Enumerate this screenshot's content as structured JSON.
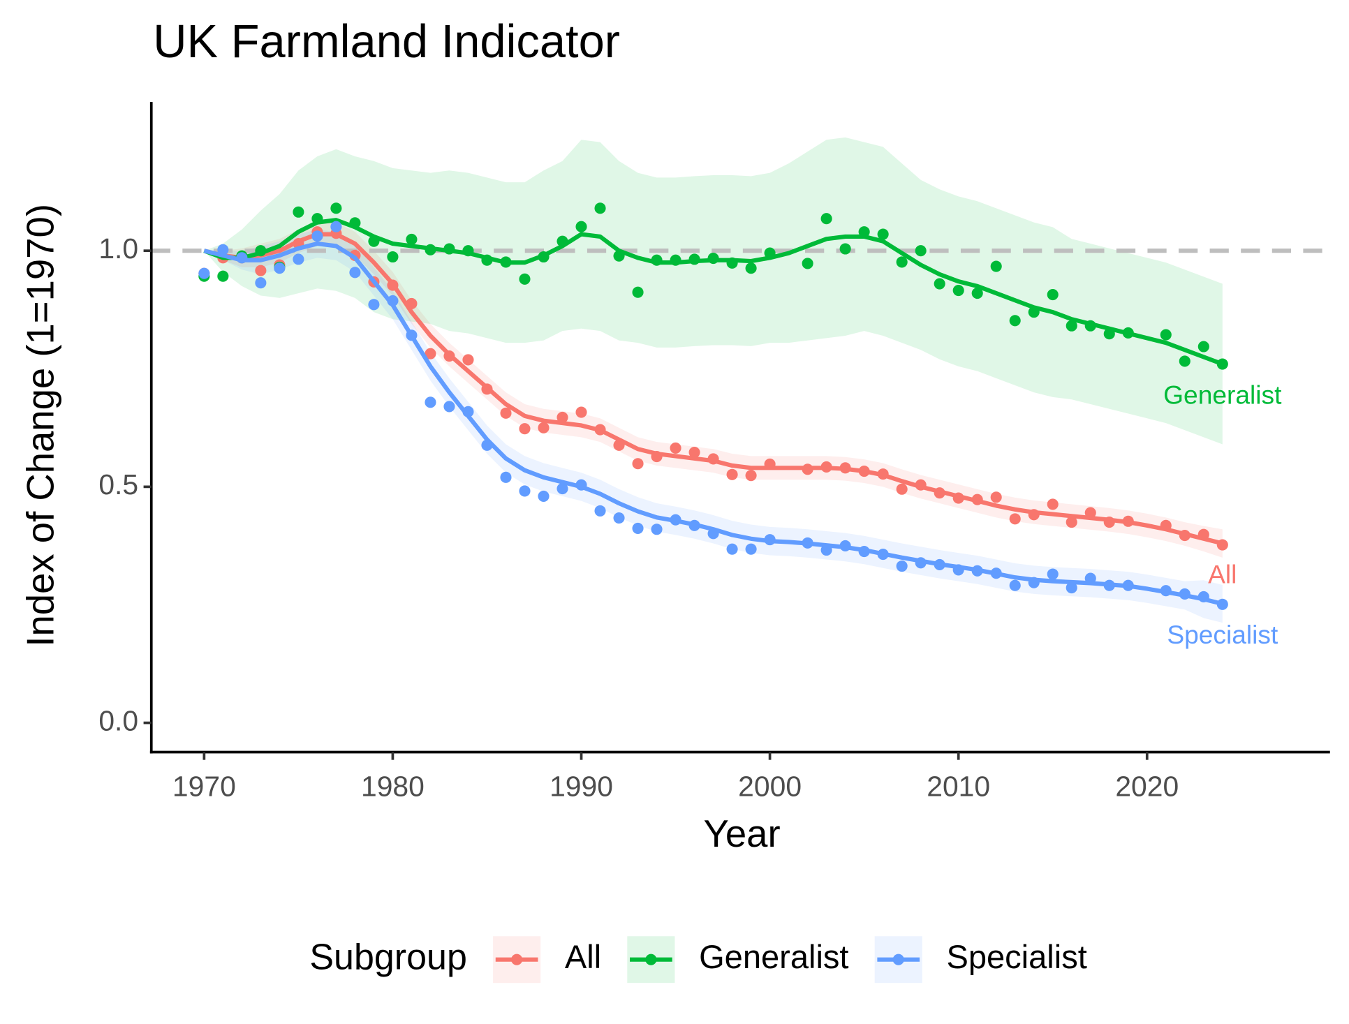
{
  "chart_data": {
    "type": "line",
    "title": "UK Farmland Indicator",
    "x_label": "Year",
    "y_label": "Index of Change (1=1970)",
    "legend_title": "Subgroup",
    "legend_position": "bottom",
    "hline": 1,
    "xlim": [
      1967.2,
      2029.7
    ],
    "ylim": [
      -0.062,
      1.315
    ],
    "xticks": [
      1970,
      1980,
      1990,
      2000,
      2010,
      2020
    ],
    "yticks": [
      {
        "value": 0,
        "label": "0.0"
      },
      {
        "value": 0.5,
        "label": "0.5"
      },
      {
        "value": 1,
        "label": "1.0"
      }
    ],
    "x": [
      1970,
      1971,
      1972,
      1973,
      1974,
      1975,
      1976,
      1977,
      1978,
      1979,
      1980,
      1981,
      1982,
      1983,
      1984,
      1985,
      1986,
      1987,
      1988,
      1989,
      1990,
      1991,
      1992,
      1993,
      1994,
      1995,
      1996,
      1997,
      1998,
      1999,
      2000,
      2001,
      2002,
      2003,
      2004,
      2005,
      2006,
      2007,
      2008,
      2009,
      2010,
      2011,
      2012,
      2013,
      2014,
      2015,
      2016,
      2017,
      2018,
      2019,
      2020,
      2021,
      2022,
      2023,
      2024
    ],
    "series": [
      {
        "name": "All",
        "color": "#F8766D",
        "values": [
          0.952,
          0.985,
          0.985,
          0.958,
          0.97,
          1.015,
          1.04,
          1.037,
          0.99,
          0.934,
          0.927,
          0.888,
          0.782,
          0.777,
          0.769,
          0.707,
          0.656,
          0.623,
          0.625,
          0.647,
          0.658,
          0.621,
          0.588,
          0.549,
          0.564,
          0.582,
          0.573,
          0.559,
          0.526,
          0.524,
          0.548,
          null,
          0.537,
          0.542,
          0.54,
          0.533,
          0.527,
          0.495,
          0.504,
          0.487,
          0.476,
          0.473,
          0.478,
          0.432,
          0.441,
          0.463,
          0.425,
          0.445,
          0.425,
          0.427,
          null,
          0.418,
          0.397,
          0.399,
          0.377
        ],
        "smooth": [
          1.0,
          0.99,
          0.985,
          0.99,
          1.0,
          1.02,
          1.035,
          1.035,
          1.015,
          0.975,
          0.93,
          0.87,
          0.82,
          0.78,
          0.745,
          0.71,
          0.675,
          0.65,
          0.64,
          0.635,
          0.63,
          0.62,
          0.6,
          0.58,
          0.57,
          0.565,
          0.56,
          0.555,
          0.545,
          0.54,
          0.54,
          0.54,
          0.54,
          0.54,
          0.538,
          0.533,
          0.525,
          0.512,
          0.5,
          0.49,
          0.48,
          0.47,
          0.46,
          0.452,
          0.446,
          0.442,
          0.438,
          0.434,
          0.43,
          0.425,
          0.418,
          0.41,
          0.4,
          0.39,
          0.38
        ],
        "lower": [
          1.0,
          0.98,
          0.965,
          0.965,
          0.975,
          0.995,
          1.01,
          1.01,
          0.99,
          0.95,
          0.905,
          0.845,
          0.795,
          0.755,
          0.72,
          0.685,
          0.65,
          0.625,
          0.615,
          0.61,
          0.605,
          0.595,
          0.575,
          0.555,
          0.545,
          0.54,
          0.535,
          0.53,
          0.52,
          0.515,
          0.515,
          0.515,
          0.515,
          0.515,
          0.513,
          0.508,
          0.5,
          0.487,
          0.475,
          0.465,
          0.455,
          0.445,
          0.435,
          0.427,
          0.421,
          0.417,
          0.413,
          0.409,
          0.405,
          0.4,
          0.393,
          0.385,
          0.375,
          0.363,
          0.35
        ],
        "upper": [
          1.0,
          1.0,
          1.005,
          1.015,
          1.025,
          1.045,
          1.06,
          1.06,
          1.04,
          1.0,
          0.955,
          0.895,
          0.845,
          0.805,
          0.77,
          0.735,
          0.7,
          0.675,
          0.665,
          0.66,
          0.655,
          0.645,
          0.625,
          0.605,
          0.595,
          0.59,
          0.585,
          0.58,
          0.57,
          0.565,
          0.565,
          0.565,
          0.565,
          0.565,
          0.563,
          0.558,
          0.55,
          0.537,
          0.525,
          0.515,
          0.505,
          0.495,
          0.485,
          0.477,
          0.471,
          0.467,
          0.463,
          0.459,
          0.455,
          0.45,
          0.443,
          0.435,
          0.425,
          0.417,
          0.41
        ]
      },
      {
        "name": "Generalist",
        "color": "#00BA38",
        "values": [
          0.946,
          0.946,
          0.989,
          1.0,
          0.965,
          1.082,
          1.068,
          1.09,
          1.059,
          1.02,
          0.987,
          1.024,
          1.002,
          1.004,
          1.0,
          0.98,
          0.976,
          0.94,
          0.987,
          1.02,
          1.051,
          1.09,
          0.989,
          0.912,
          0.98,
          0.98,
          0.982,
          0.984,
          0.974,
          0.963,
          0.995,
          null,
          0.973,
          1.068,
          1.004,
          1.04,
          1.035,
          0.976,
          1.0,
          0.93,
          0.916,
          0.91,
          0.967,
          0.852,
          0.87,
          0.907,
          0.841,
          0.841,
          0.824,
          0.826,
          null,
          0.822,
          0.766,
          0.797,
          0.76
        ],
        "smooth": [
          1.0,
          0.985,
          0.985,
          0.995,
          1.01,
          1.04,
          1.06,
          1.065,
          1.05,
          1.03,
          1.015,
          1.01,
          1.005,
          1.0,
          0.995,
          0.985,
          0.975,
          0.975,
          0.99,
          1.01,
          1.035,
          1.03,
          1.0,
          0.985,
          0.975,
          0.975,
          0.978,
          0.98,
          0.98,
          0.978,
          0.985,
          0.995,
          1.01,
          1.025,
          1.03,
          1.03,
          1.02,
          0.995,
          0.97,
          0.95,
          0.935,
          0.925,
          0.91,
          0.895,
          0.88,
          0.87,
          0.855,
          0.845,
          0.835,
          0.825,
          0.815,
          0.805,
          0.79,
          0.775,
          0.76
        ],
        "lower": [
          1.0,
          0.955,
          0.925,
          0.905,
          0.9,
          0.91,
          0.92,
          0.915,
          0.9,
          0.87,
          0.855,
          0.85,
          0.845,
          0.83,
          0.825,
          0.815,
          0.805,
          0.805,
          0.81,
          0.83,
          0.835,
          0.83,
          0.81,
          0.805,
          0.795,
          0.795,
          0.798,
          0.8,
          0.8,
          0.798,
          0.805,
          0.805,
          0.81,
          0.815,
          0.82,
          0.83,
          0.82,
          0.805,
          0.79,
          0.77,
          0.755,
          0.745,
          0.73,
          0.715,
          0.7,
          0.69,
          0.685,
          0.675,
          0.665,
          0.655,
          0.645,
          0.635,
          0.62,
          0.605,
          0.59
        ],
        "upper": [
          1.0,
          1.015,
          1.045,
          1.085,
          1.12,
          1.17,
          1.2,
          1.215,
          1.2,
          1.19,
          1.175,
          1.17,
          1.165,
          1.17,
          1.165,
          1.155,
          1.145,
          1.145,
          1.17,
          1.19,
          1.235,
          1.23,
          1.19,
          1.165,
          1.155,
          1.155,
          1.158,
          1.16,
          1.16,
          1.158,
          1.165,
          1.185,
          1.21,
          1.235,
          1.24,
          1.23,
          1.22,
          1.185,
          1.15,
          1.13,
          1.115,
          1.105,
          1.09,
          1.075,
          1.06,
          1.05,
          1.025,
          1.015,
          1.005,
          0.995,
          0.985,
          0.975,
          0.96,
          0.945,
          0.93
        ]
      },
      {
        "name": "Specialist",
        "color": "#619CFF",
        "values": [
          0.952,
          1.002,
          0.985,
          0.932,
          0.963,
          0.982,
          1.031,
          1.051,
          0.954,
          0.886,
          0.894,
          0.821,
          0.679,
          0.67,
          0.659,
          0.588,
          0.52,
          0.491,
          0.48,
          0.496,
          0.504,
          0.449,
          0.434,
          0.412,
          0.41,
          0.43,
          0.418,
          0.401,
          0.368,
          0.368,
          0.388,
          null,
          0.381,
          0.366,
          0.375,
          0.363,
          0.357,
          0.332,
          0.339,
          0.335,
          0.324,
          0.322,
          0.317,
          0.291,
          0.297,
          0.315,
          0.286,
          0.306,
          0.291,
          0.291,
          null,
          0.28,
          0.273,
          0.267,
          0.251
        ],
        "smooth": [
          1.0,
          0.99,
          0.98,
          0.98,
          0.99,
          1.005,
          1.015,
          1.01,
          0.985,
          0.935,
          0.885,
          0.82,
          0.755,
          0.7,
          0.65,
          0.6,
          0.56,
          0.535,
          0.52,
          0.51,
          0.5,
          0.485,
          0.465,
          0.448,
          0.435,
          0.428,
          0.42,
          0.41,
          0.398,
          0.39,
          0.385,
          0.383,
          0.38,
          0.376,
          0.372,
          0.366,
          0.358,
          0.35,
          0.343,
          0.336,
          0.33,
          0.324,
          0.316,
          0.308,
          0.303,
          0.3,
          0.298,
          0.296,
          0.293,
          0.29,
          0.284,
          0.277,
          0.27,
          0.262,
          0.252
        ],
        "lower": [
          1.0,
          0.98,
          0.96,
          0.95,
          0.96,
          0.975,
          0.985,
          0.98,
          0.955,
          0.905,
          0.855,
          0.79,
          0.725,
          0.67,
          0.62,
          0.57,
          0.53,
          0.505,
          0.49,
          0.48,
          0.47,
          0.455,
          0.435,
          0.418,
          0.405,
          0.398,
          0.39,
          0.38,
          0.368,
          0.36,
          0.355,
          0.353,
          0.35,
          0.346,
          0.342,
          0.336,
          0.328,
          0.32,
          0.313,
          0.306,
          0.3,
          0.294,
          0.286,
          0.278,
          0.273,
          0.27,
          0.268,
          0.266,
          0.263,
          0.26,
          0.254,
          0.247,
          0.24,
          0.222,
          0.212
        ],
        "upper": [
          1.0,
          1.0,
          1.0,
          1.01,
          1.02,
          1.035,
          1.045,
          1.04,
          1.015,
          0.965,
          0.915,
          0.85,
          0.785,
          0.73,
          0.68,
          0.63,
          0.59,
          0.565,
          0.55,
          0.54,
          0.53,
          0.515,
          0.495,
          0.478,
          0.465,
          0.458,
          0.45,
          0.44,
          0.428,
          0.42,
          0.415,
          0.413,
          0.41,
          0.406,
          0.402,
          0.396,
          0.388,
          0.38,
          0.373,
          0.366,
          0.36,
          0.354,
          0.346,
          0.338,
          0.333,
          0.33,
          0.328,
          0.326,
          0.323,
          0.32,
          0.314,
          0.307,
          0.3,
          0.302,
          0.292
        ]
      }
    ]
  }
}
